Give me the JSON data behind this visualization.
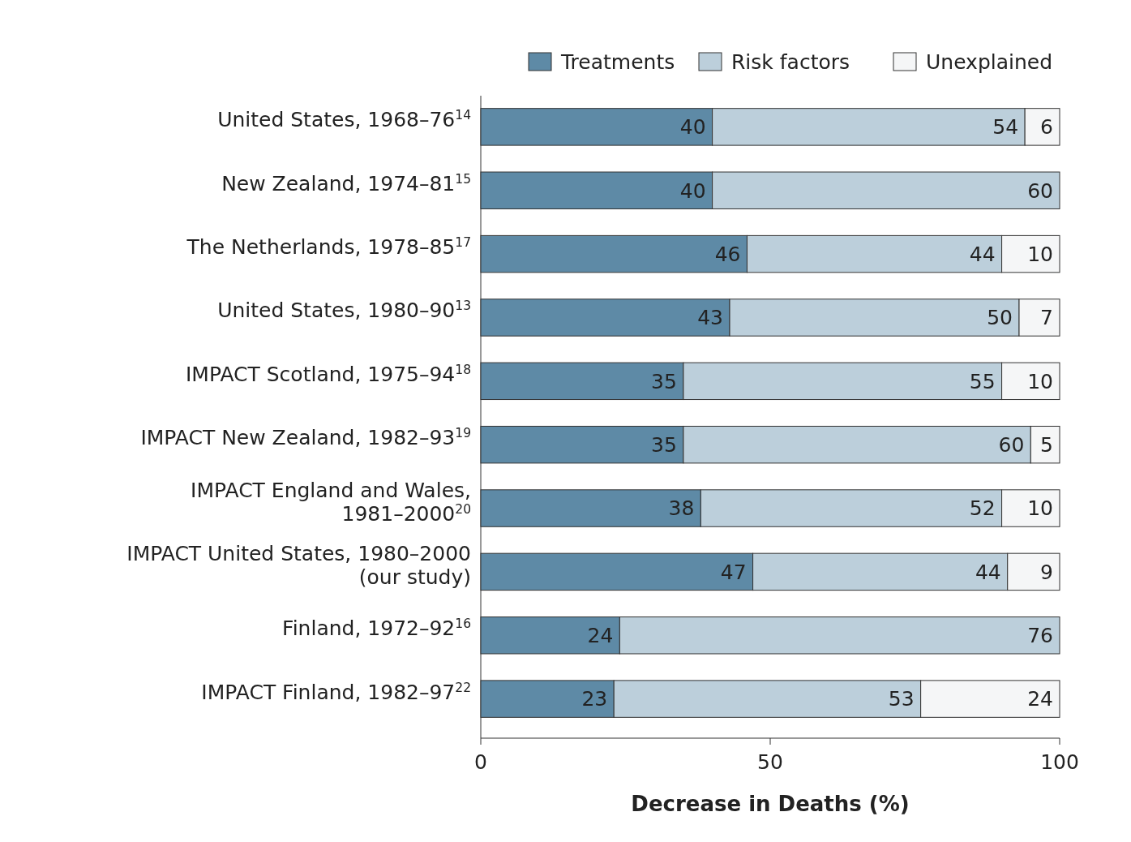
{
  "chart_data": {
    "type": "bar",
    "orientation": "horizontal",
    "stacked": true,
    "categories": [
      "United States, 1968–76$^{14}$",
      "New Zealand, 1974–81$^{15}$",
      "The Netherlands, 1978–85$^{17}$",
      "United States, 1980–90$^{13}$",
      "IMPACT Scotland, 1975–94$^{18}$",
      "IMPACT New Zealand, 1982–93$^{19}$",
      "IMPACT England and Wales,\n1981–2000$^{20}$",
      "IMPACT United States, 1980–2000\n(our study)",
      "Finland, 1972–92$^{16}$",
      "IMPACT Finland, 1982–97$^{22}$"
    ],
    "series": [
      {
        "name": "Treatments",
        "color": "#5e8aa6",
        "values": [
          40,
          40,
          46,
          43,
          35,
          35,
          38,
          47,
          24,
          23
        ]
      },
      {
        "name": "Risk factors",
        "color": "#bccfdb",
        "values": [
          54,
          60,
          44,
          50,
          55,
          60,
          52,
          44,
          76,
          53
        ]
      },
      {
        "name": "Unexplained",
        "color": "#f5f6f7",
        "values": [
          6,
          null,
          10,
          7,
          10,
          5,
          10,
          9,
          null,
          24
        ]
      }
    ],
    "xlim": [
      0,
      100
    ],
    "xticks": [
      0,
      50,
      100
    ],
    "xlabel": "Decrease in Deaths (%)",
    "data_labels": true,
    "legend": "top right",
    "grid": false
  }
}
